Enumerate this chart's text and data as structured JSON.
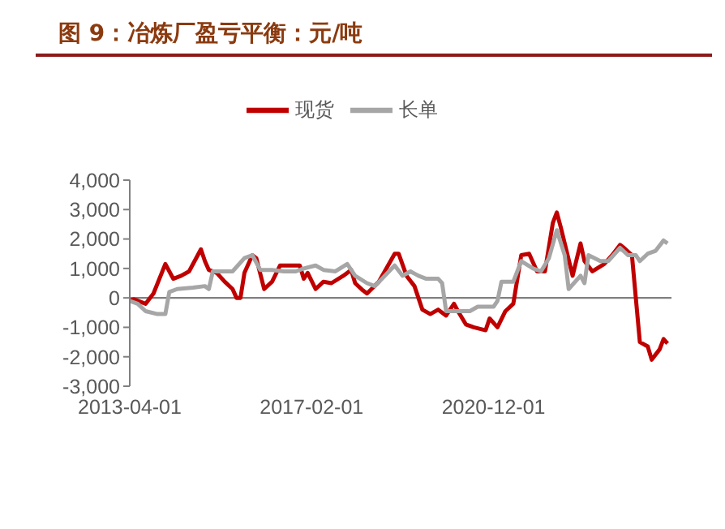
{
  "chart_data": {
    "type": "line",
    "title": "图 9：冶炼厂盈亏平衡：元/吨",
    "legend": "top",
    "grid": false,
    "marker": "none",
    "line_style": "solid",
    "xlim": [
      "2013-04-01",
      "2024-09-01"
    ],
    "xticks": [
      "2013-04-01",
      "2017-02-01",
      "2020-12-01"
    ],
    "ylim": [
      -3000,
      4000
    ],
    "yticks": [
      {
        "value": -3000,
        "label": "-3,000"
      },
      {
        "value": -2000,
        "label": "-2,000"
      },
      {
        "value": -1000,
        "label": "-1,000"
      },
      0,
      {
        "value": 1000,
        "label": "1,000"
      },
      {
        "value": 2000,
        "label": "2,000"
      },
      {
        "value": 3000,
        "label": "3,000"
      },
      {
        "value": 4000,
        "label": "4,000"
      }
    ],
    "ref_lines": [
      {
        "axis": "y",
        "value": 0,
        "color": "#808080"
      }
    ],
    "series": [
      {
        "name": "现货",
        "color": "#c00000",
        "x": [
          "2013-04",
          "2013-05",
          "2013-08",
          "2013-10",
          "2014-01",
          "2014-03",
          "2014-05",
          "2014-07",
          "2014-10",
          "2014-11",
          "2014-12",
          "2015-02",
          "2015-04",
          "2015-06",
          "2015-07",
          "2015-08",
          "2015-09",
          "2015-11",
          "2015-12",
          "2016-02",
          "2016-04",
          "2016-06",
          "2016-09",
          "2016-11",
          "2016-12",
          "2017-01",
          "2017-03",
          "2017-05",
          "2017-07",
          "2017-10",
          "2017-12",
          "2018-01",
          "2018-03",
          "2018-04",
          "2018-07",
          "2018-11",
          "2018-12",
          "2019-02",
          "2019-04",
          "2019-06",
          "2019-08",
          "2019-10",
          "2019-12",
          "2020-02",
          "2020-03",
          "2020-05",
          "2020-07",
          "2020-10",
          "2020-11",
          "2021-01",
          "2021-03",
          "2021-05",
          "2021-07",
          "2021-09",
          "2021-11",
          "2022-01",
          "2022-03",
          "2022-04",
          "2022-05",
          "2022-08",
          "2022-10",
          "2022-11",
          "2023-01",
          "2023-04",
          "2023-06",
          "2023-08",
          "2023-09",
          "2023-11",
          "2024-01",
          "2024-03",
          "2024-04",
          "2024-06",
          "2024-07",
          "2024-08"
        ],
        "values": [
          -100,
          -50,
          -200,
          150,
          1150,
          650,
          750,
          900,
          1650,
          1250,
          950,
          850,
          550,
          300,
          0,
          0,
          850,
          1450,
          1350,
          300,
          550,
          1100,
          1100,
          1100,
          650,
          850,
          300,
          550,
          500,
          750,
          950,
          500,
          250,
          150,
          550,
          1500,
          1500,
          750,
          400,
          -400,
          -550,
          -400,
          -600,
          -200,
          -450,
          -900,
          -1000,
          -1100,
          -700,
          -1000,
          -450,
          -200,
          1450,
          1500,
          900,
          900,
          2550,
          2900,
          2400,
          750,
          1850,
          1250,
          900,
          1150,
          1450,
          1800,
          1700,
          1450,
          -1500,
          -1650,
          -2100,
          -1750,
          -1400,
          -1550
        ]
      },
      {
        "name": "长单",
        "color": "#a6a6a6",
        "x": [
          "2013-04",
          "2013-06",
          "2013-08",
          "2013-11",
          "2014-01",
          "2014-02",
          "2014-04",
          "2014-08",
          "2014-11",
          "2014-12",
          "2015-01",
          "2015-04",
          "2015-06",
          "2015-09",
          "2015-11",
          "2016-01",
          "2016-04",
          "2016-07",
          "2016-10",
          "2016-12",
          "2017-03",
          "2017-05",
          "2017-08",
          "2017-11",
          "2018-01",
          "2018-04",
          "2018-06",
          "2018-11",
          "2019-01",
          "2019-03",
          "2019-05",
          "2019-07",
          "2019-10",
          "2019-11",
          "2019-12",
          "2020-03",
          "2020-06",
          "2020-08",
          "2020-12",
          "2021-01",
          "2021-02",
          "2021-05",
          "2021-07",
          "2021-10",
          "2021-12",
          "2022-02",
          "2022-04",
          "2022-06",
          "2022-07",
          "2022-10",
          "2022-11",
          "2022-12",
          "2023-03",
          "2023-05",
          "2023-08",
          "2023-10",
          "2023-12",
          "2024-01",
          "2024-03",
          "2024-05",
          "2024-07",
          "2024-08"
        ],
        "values": [
          -100,
          -200,
          -450,
          -550,
          -550,
          200,
          300,
          350,
          400,
          300,
          900,
          900,
          900,
          1350,
          1450,
          950,
          950,
          900,
          900,
          1000,
          1100,
          950,
          900,
          1150,
          750,
          500,
          400,
          1100,
          750,
          900,
          750,
          650,
          650,
          500,
          -450,
          -450,
          -450,
          -300,
          -300,
          -100,
          550,
          550,
          1250,
          1000,
          900,
          1350,
          2300,
          1450,
          300,
          750,
          500,
          1450,
          1250,
          1250,
          1700,
          1450,
          1450,
          1250,
          1500,
          1600,
          1950,
          1850
        ]
      }
    ]
  }
}
